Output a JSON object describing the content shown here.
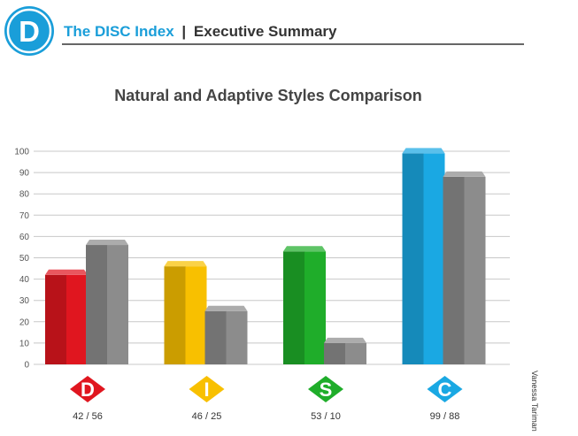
{
  "header": {
    "logo_letter": "D",
    "brand": "The DISC Index",
    "separator": "|",
    "section": "Executive Summary",
    "brand_color": "#1a9ed9"
  },
  "side_label": "Vanessa Tariman",
  "chart_data": {
    "type": "bar",
    "title": "Natural and Adaptive Styles Comparison",
    "xlabel": "",
    "ylabel": "",
    "ylim": [
      0,
      100
    ],
    "yticks": [
      0,
      10,
      20,
      30,
      40,
      50,
      60,
      70,
      80,
      90,
      100
    ],
    "grid": true,
    "categories": [
      "D",
      "I",
      "S",
      "C"
    ],
    "series": [
      {
        "values": [
          42,
          46,
          53,
          99
        ]
      },
      {
        "values": [
          56,
          25,
          10,
          88
        ]
      }
    ],
    "value_labels": [
      "42 / 56",
      "46 / 25",
      "53 / 10",
      "99 / 88"
    ],
    "category_colors": [
      "#e0161f",
      "#f8c000",
      "#1fad2a",
      "#1aa8e3"
    ],
    "adaptive_color": "#8c8c8c"
  }
}
